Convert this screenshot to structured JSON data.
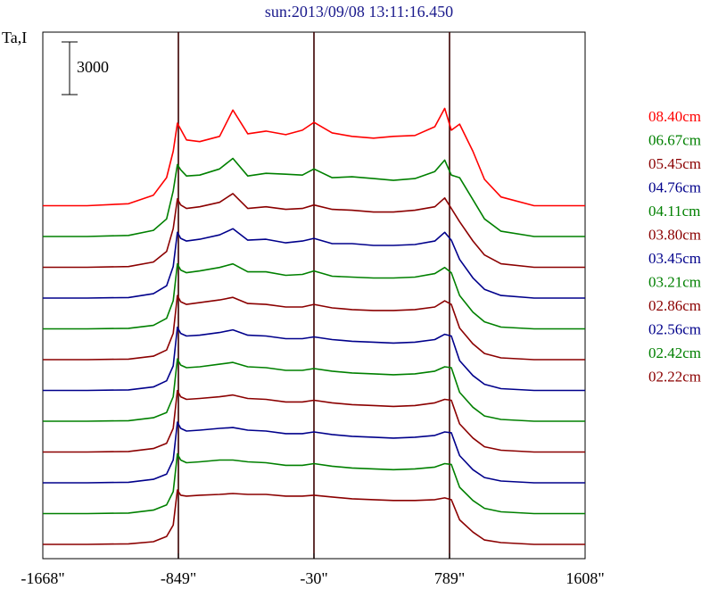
{
  "chart_data": {
    "type": "line",
    "title": "sun:2013/09/08 13:11:16.450",
    "ylabel": "Ta,I",
    "xlabel": "",
    "scale_bar_label": "3000",
    "scale_bar_value": 3000,
    "xlim": [
      -1668,
      1608
    ],
    "x_ticks": [
      -1668,
      -849,
      -30,
      789,
      1608
    ],
    "x_tick_labels": [
      "-1668\"",
      "-849\"",
      "-30\"",
      "789\"",
      "1608\""
    ],
    "vertical_markers": [
      -849,
      -30,
      789
    ],
    "profile_x": [
      -1668,
      -1400,
      -1150,
      -1000,
      -920,
      -880,
      -855,
      -835,
      -800,
      -720,
      -600,
      -520,
      -430,
      -320,
      -200,
      -100,
      -30,
      80,
      200,
      330,
      450,
      580,
      700,
      760,
      800,
      850,
      930,
      1000,
      1100,
      1300,
      1608
    ],
    "series": [
      {
        "name": "08.40cm",
        "color": "#ff0000",
        "profile": [
          0,
          0,
          110,
          600,
          1600,
          3100,
          4700,
          4350,
          3750,
          3650,
          3950,
          5450,
          4100,
          4250,
          4050,
          4300,
          4750,
          4150,
          3950,
          3850,
          3950,
          4000,
          4500,
          5550,
          4300,
          4650,
          3100,
          1500,
          500,
          0,
          0
        ]
      },
      {
        "name": "06.67cm",
        "color": "#008000",
        "profile": [
          0,
          0,
          60,
          350,
          1000,
          2600,
          4100,
          3800,
          3450,
          3500,
          3850,
          4450,
          3450,
          3600,
          3550,
          3500,
          3850,
          3350,
          3400,
          3300,
          3200,
          3300,
          3700,
          4350,
          3500,
          3350,
          2100,
          1000,
          300,
          0,
          0
        ]
      },
      {
        "name": "05.45cm",
        "color": "#8b0000",
        "profile": [
          0,
          0,
          40,
          300,
          900,
          2200,
          3900,
          3550,
          3350,
          3450,
          3700,
          4200,
          3350,
          3450,
          3300,
          3350,
          3550,
          3300,
          3250,
          3150,
          3150,
          3250,
          3450,
          3950,
          3350,
          2600,
          1500,
          700,
          200,
          0,
          0
        ]
      },
      {
        "name": "04.76cm",
        "color": "#00008b",
        "profile": [
          0,
          0,
          30,
          250,
          700,
          1800,
          3750,
          3400,
          3250,
          3350,
          3600,
          3950,
          3300,
          3350,
          3150,
          3250,
          3400,
          3100,
          3100,
          3000,
          3000,
          3050,
          3250,
          3750,
          3300,
          2200,
          1150,
          500,
          150,
          0,
          0
        ]
      },
      {
        "name": "04.11cm",
        "color": "#008000",
        "profile": [
          0,
          0,
          30,
          200,
          600,
          1600,
          3700,
          3350,
          3200,
          3300,
          3500,
          3700,
          3250,
          3250,
          3050,
          3100,
          3300,
          3000,
          2950,
          2900,
          2900,
          2950,
          3150,
          3500,
          3200,
          1900,
          950,
          400,
          100,
          0,
          0
        ]
      },
      {
        "name": "03.80cm",
        "color": "#8b0000",
        "profile": [
          0,
          0,
          30,
          200,
          550,
          1500,
          3650,
          3300,
          3150,
          3250,
          3400,
          3550,
          3200,
          3150,
          3000,
          3000,
          3150,
          2950,
          2850,
          2800,
          2800,
          2850,
          3000,
          3350,
          3150,
          1800,
          900,
          350,
          100,
          0,
          0
        ]
      },
      {
        "name": "03.45cm",
        "color": "#00008b",
        "profile": [
          0,
          0,
          30,
          200,
          550,
          1400,
          3600,
          3250,
          3100,
          3150,
          3300,
          3450,
          3150,
          3100,
          2950,
          2950,
          3050,
          2900,
          2800,
          2750,
          2700,
          2750,
          2900,
          3200,
          3100,
          1700,
          850,
          350,
          100,
          0,
          0
        ]
      },
      {
        "name": "03.21cm",
        "color": "#008000",
        "profile": [
          0,
          0,
          30,
          200,
          500,
          1400,
          3550,
          3200,
          3050,
          3100,
          3250,
          3350,
          3100,
          3050,
          2900,
          2900,
          3000,
          2850,
          2750,
          2700,
          2650,
          2700,
          2850,
          3100,
          3050,
          1650,
          800,
          300,
          100,
          0,
          0
        ]
      },
      {
        "name": "02.86cm",
        "color": "#8b0000",
        "profile": [
          0,
          0,
          30,
          200,
          500,
          1350,
          3500,
          3150,
          3000,
          3050,
          3150,
          3250,
          3050,
          3000,
          2850,
          2850,
          2950,
          2800,
          2700,
          2650,
          2600,
          2650,
          2800,
          3000,
          2950,
          1600,
          800,
          300,
          100,
          0,
          0
        ]
      },
      {
        "name": "02.56cm",
        "color": "#00008b",
        "profile": [
          0,
          0,
          30,
          200,
          500,
          1300,
          3450,
          3100,
          2950,
          3000,
          3100,
          3150,
          3000,
          2950,
          2800,
          2800,
          2900,
          2750,
          2650,
          2600,
          2550,
          2600,
          2700,
          2900,
          2850,
          1550,
          750,
          300,
          100,
          0,
          0
        ]
      },
      {
        "name": "02.42cm",
        "color": "#008000",
        "profile": [
          0,
          0,
          30,
          200,
          500,
          1250,
          3400,
          3050,
          2900,
          2950,
          3050,
          3050,
          2950,
          2900,
          2750,
          2750,
          2850,
          2700,
          2600,
          2550,
          2500,
          2550,
          2650,
          2850,
          2800,
          1500,
          750,
          300,
          100,
          0,
          0
        ]
      },
      {
        "name": "02.22cm",
        "color": "#8b0000",
        "profile": [
          0,
          0,
          30,
          150,
          450,
          1100,
          3100,
          2800,
          2750,
          2800,
          2850,
          2900,
          2850,
          2850,
          2750,
          2750,
          2800,
          2700,
          2600,
          2550,
          2500,
          2500,
          2550,
          2650,
          2550,
          1400,
          700,
          250,
          100,
          0,
          0
        ]
      }
    ]
  }
}
